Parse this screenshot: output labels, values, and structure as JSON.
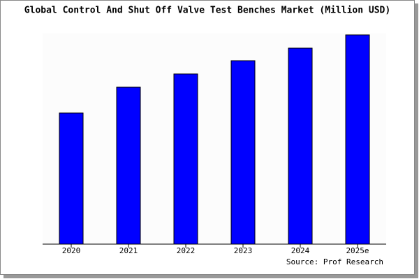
{
  "chart_data": {
    "type": "bar",
    "title": "Global Control And Shut Off Valve Test Benches Market (Million USD)",
    "categories": [
      "2020",
      "2021",
      "2022",
      "2023",
      "2024",
      "2025e"
    ],
    "values": [
      188,
      225,
      244,
      263,
      281,
      300
    ],
    "color": "#0000ff",
    "ylim": [
      0,
      300
    ],
    "source": "Source: Prof Research"
  }
}
